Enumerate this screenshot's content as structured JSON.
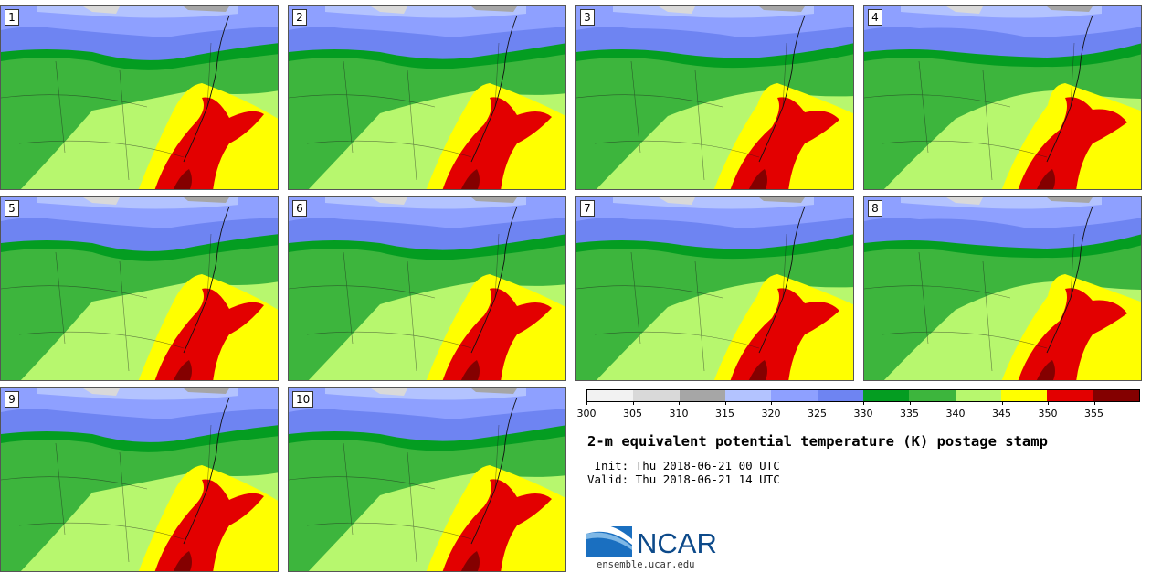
{
  "panels": [
    {
      "label": "1"
    },
    {
      "label": "2"
    },
    {
      "label": "3"
    },
    {
      "label": "4"
    },
    {
      "label": "5"
    },
    {
      "label": "6"
    },
    {
      "label": "7"
    },
    {
      "label": "8"
    },
    {
      "label": "9"
    },
    {
      "label": "10"
    }
  ],
  "colorbar": {
    "colors": [
      "#f2f2f2",
      "#d9d9d9",
      "#a6a6a6",
      "#b3c3ff",
      "#8ea0ff",
      "#6e84f2",
      "#049d21",
      "#3db53d",
      "#b7f76e",
      "#ffff00",
      "#e30000",
      "#840000"
    ],
    "ticks": [
      "300",
      "305",
      "310",
      "315",
      "320",
      "325",
      "330",
      "335",
      "340",
      "345",
      "350",
      "355"
    ]
  },
  "title": "2-m equivalent potential temperature (K) postage stamp",
  "init": " Init: Thu 2018-06-21 00 UTC",
  "valid": "Valid: Thu 2018-06-21 14 UTC",
  "logo": {
    "name": "NCAR",
    "site": "ensemble.ucar.edu"
  }
}
